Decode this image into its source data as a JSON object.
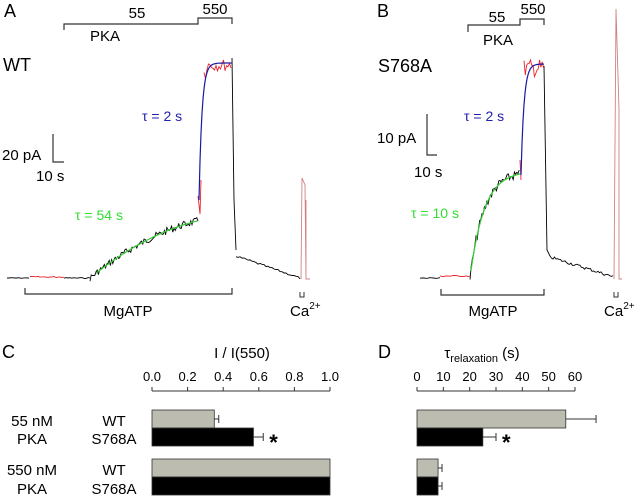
{
  "panels": {
    "A": {
      "letter": "A",
      "construct": "WT",
      "pka_bar_label_low": "55",
      "pka_bar_label_high": "550",
      "pka_label": "PKA",
      "scale_y": "20 pA",
      "scale_x": "10 s",
      "tau_fast_label": "τ = 2 s",
      "tau_slow_label": "τ = 54 s",
      "mgatp_label": "MgATP",
      "ca_label": "Ca",
      "ca_sup": "2+"
    },
    "B": {
      "letter": "B",
      "construct": "S768A",
      "pka_bar_label_low": "55",
      "pka_bar_label_high": "550",
      "pka_label": "PKA",
      "scale_y": "10 pA",
      "scale_x": "10 s",
      "tau_fast_label": "τ = 2 s",
      "tau_slow_label": "τ = 10 s",
      "mgatp_label": "MgATP",
      "ca_label": "Ca",
      "ca_sup": "2+"
    },
    "C": {
      "letter": "C"
    },
    "D": {
      "letter": "D"
    }
  },
  "row_labels": {
    "group1": [
      "55 nM",
      "PKA"
    ],
    "group2": [
      "550 nM",
      "PKA"
    ],
    "constructs": [
      "WT",
      "S768A"
    ]
  },
  "colors": {
    "wt_bar": "#bcbcb0",
    "s768a_bar": "#000000",
    "trace": "#000000",
    "trace_red": "#e8262b",
    "fit_slow": "#33cc33",
    "fit_fast": "#1a1aa0",
    "tau_slow_text": "#33dd33",
    "tau_fast_text": "#2020b0"
  },
  "chart_data": [
    {
      "type": "bar",
      "orientation": "horizontal",
      "panel": "C",
      "title": "I / I(550)",
      "xlim": [
        0,
        1.0
      ],
      "xticks": [
        "0.0",
        "0.2",
        "0.4",
        "0.6",
        "0.8",
        "1.0"
      ],
      "categories": [
        "55 nM PKA",
        "550 nM PKA"
      ],
      "series": [
        {
          "name": "WT",
          "values": [
            0.35,
            1.0
          ],
          "errors": [
            0.025,
            0
          ]
        },
        {
          "name": "S768A",
          "values": [
            0.57,
            1.0
          ],
          "errors": [
            0.055,
            0
          ]
        }
      ],
      "annotations": [
        {
          "category": "55 nM PKA",
          "series": "S768A",
          "text": "*"
        }
      ]
    },
    {
      "type": "bar",
      "orientation": "horizontal",
      "panel": "D",
      "title": "τ",
      "title_sub": "relaxation",
      "title_suffix": " (s)",
      "xlim": [
        0,
        60
      ],
      "xticks": [
        "0",
        "10",
        "20",
        "30",
        "40",
        "50",
        "60"
      ],
      "categories": [
        "55 nM PKA",
        "550 nM PKA"
      ],
      "series": [
        {
          "name": "WT",
          "values": [
            56.5,
            8
          ],
          "errors": [
            11.5,
            1.5
          ]
        },
        {
          "name": "S768A",
          "values": [
            25,
            8
          ],
          "errors": [
            5,
            1.5
          ]
        }
      ],
      "annotations": [
        {
          "category": "55 nM PKA",
          "series": "S768A",
          "text": "*"
        }
      ]
    }
  ]
}
